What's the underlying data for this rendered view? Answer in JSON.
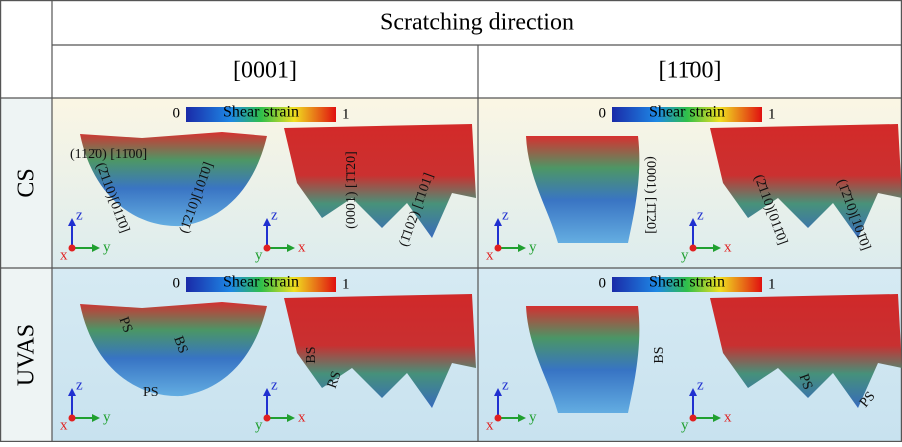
{
  "header": {
    "title": "Scratching direction",
    "columns": [
      "[0001]",
      "[11̄00]"
    ]
  },
  "colorbar": {
    "min": "0",
    "label": "Shear strain",
    "max": "1"
  },
  "axes": {
    "z": "z",
    "y": "y",
    "x": "x"
  },
  "rows": [
    {
      "label": "CS",
      "cells": [
        {
          "annotations": [
            "(112̄0) [11̄00]",
            "(2̄110)[011̄0]",
            "(1̄210)[101̄0]",
            "(0001) [1̄1̄20]",
            "(1̄102) [1̄101]"
          ]
        },
        {
          "annotations": [
            "(0001) [1̄1̄20]",
            "(2̄110)[011̄0]",
            "(1̄2̄10)[101̄0]"
          ]
        }
      ]
    },
    {
      "label": "UVAS",
      "cells": [
        {
          "annotations": [
            "PS",
            "BS",
            "PS",
            "BS",
            "RS"
          ]
        },
        {
          "annotations": [
            "BS",
            "PS",
            "PS"
          ]
        }
      ]
    }
  ]
}
